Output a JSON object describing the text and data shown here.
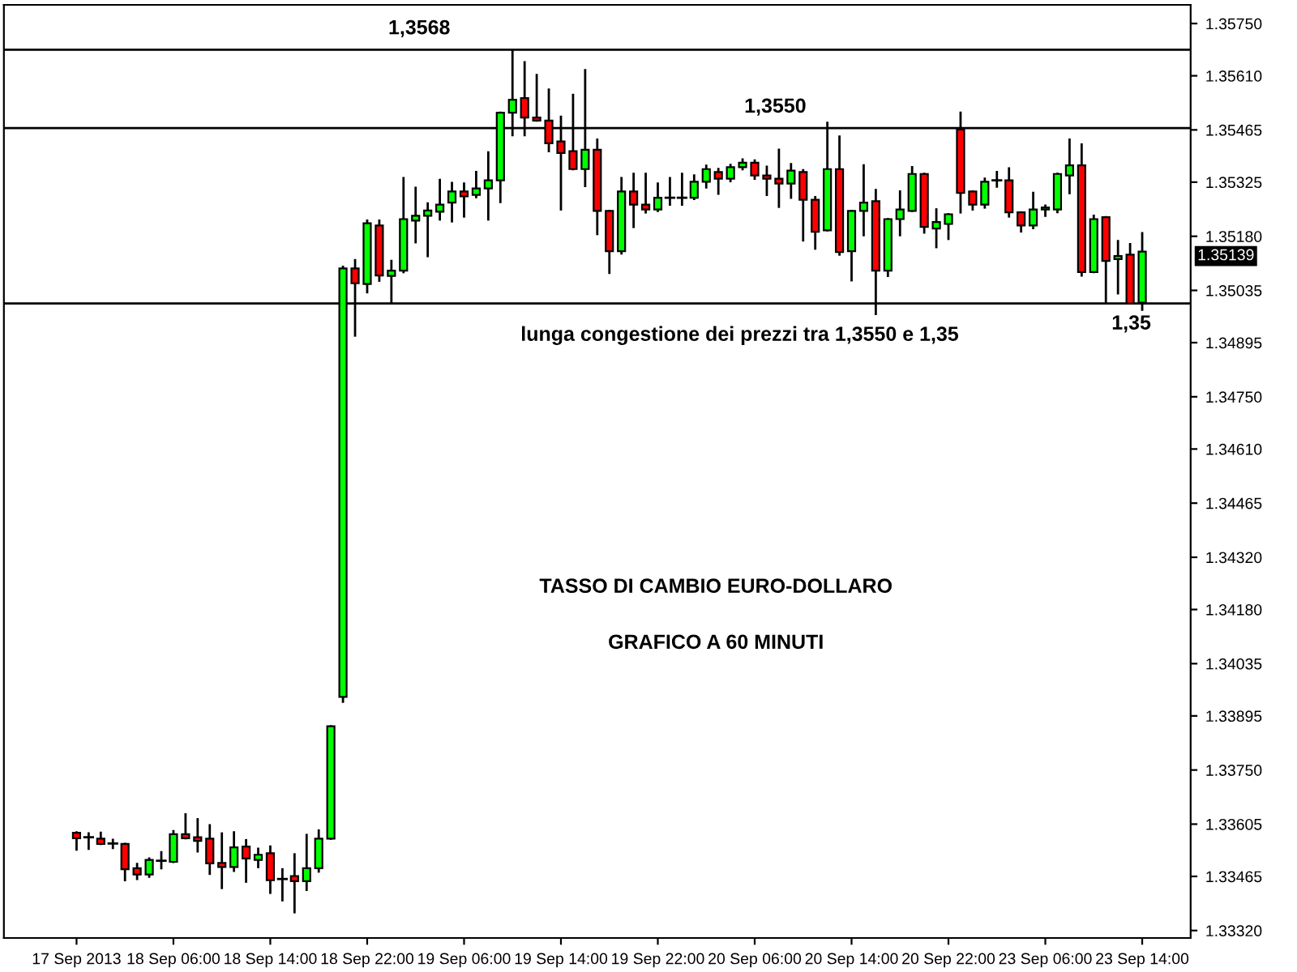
{
  "chart_data": {
    "type": "candlestick",
    "title": "TASSO DI CAMBIO EURO-DOLLARO",
    "subtitle": "GRAFICO A 60 MINUTI",
    "annotations": [
      "lunga congestione dei prezzi tra 1,3550 e 1,35",
      "1.35139"
    ],
    "categories": [
      "17 Sep 2013",
      null,
      null,
      null,
      null,
      null,
      null,
      null,
      "18 Sep 06:00",
      null,
      null,
      null,
      null,
      null,
      null,
      null,
      "18 Sep 14:00",
      null,
      null,
      null,
      null,
      null,
      null,
      null,
      "18 Sep 22:00",
      null,
      null,
      null,
      null,
      null,
      null,
      null,
      "19 Sep 06:00",
      null,
      null,
      null,
      null,
      null,
      null,
      null,
      "19 Sep 14:00",
      null,
      null,
      null,
      null,
      null,
      null,
      null,
      "19 Sep 22:00",
      null,
      null,
      null,
      null,
      null,
      null,
      null,
      "20 Sep 06:00",
      null,
      null,
      null,
      null,
      null,
      null,
      null,
      "20 Sep 14:00",
      null,
      null,
      null,
      null,
      null,
      null,
      null,
      "20 Sep 22:00",
      null,
      null,
      null,
      null,
      null,
      null,
      null,
      "23 Sep 06:00",
      null,
      null,
      null,
      null,
      null,
      null,
      null,
      "23 Sep 14:00"
    ],
    "ohlc": [
      [
        1.33582,
        1.33583,
        1.33537,
        1.33567
      ],
      [
        1.3357,
        1.3358,
        1.33539,
        1.3357
      ],
      [
        1.33566,
        1.33582,
        1.33552,
        1.33552
      ],
      [
        1.33553,
        1.33563,
        1.33541,
        1.33553
      ],
      [
        1.33552,
        1.33552,
        1.33455,
        1.33484
      ],
      [
        1.33487,
        1.33498,
        1.33458,
        1.3347
      ],
      [
        1.3347,
        1.33513,
        1.33464,
        1.33509
      ],
      [
        1.33507,
        1.3353,
        1.33487,
        1.33507
      ],
      [
        1.33504,
        1.33586,
        1.33504,
        1.33578
      ],
      [
        1.33578,
        1.33631,
        1.33567,
        1.33567
      ],
      [
        1.3357,
        1.33618,
        1.33532,
        1.3356
      ],
      [
        1.33566,
        1.33602,
        1.33472,
        1.335
      ],
      [
        1.33501,
        1.3358,
        1.33434,
        1.3349
      ],
      [
        1.3349,
        1.33583,
        1.3348,
        1.33543
      ],
      [
        1.33545,
        1.33562,
        1.33451,
        1.33513
      ],
      [
        1.33509,
        1.33539,
        1.3349,
        1.33523
      ],
      [
        1.33527,
        1.33545,
        1.33421,
        1.33455
      ],
      [
        1.33458,
        1.33484,
        1.33401,
        1.33458
      ],
      [
        1.33466,
        1.33524,
        1.33369,
        1.33452
      ],
      [
        1.33452,
        1.33576,
        1.33429,
        1.33487
      ],
      [
        1.33487,
        1.33588,
        1.33478,
        1.33566
      ],
      [
        1.33566,
        1.33867,
        1.33566,
        1.33867
      ],
      [
        1.33946,
        1.35098,
        1.33933,
        1.35094
      ],
      [
        1.35094,
        1.35116,
        1.34914,
        1.35054
      ],
      [
        1.35052,
        1.35222,
        1.3503,
        1.35215
      ],
      [
        1.35209,
        1.35222,
        1.35061,
        1.35075
      ],
      [
        1.35074,
        1.35114,
        1.35,
        1.35088
      ],
      [
        1.35088,
        1.35336,
        1.35084,
        1.35226
      ],
      [
        1.35222,
        1.3531,
        1.35164,
        1.35235
      ],
      [
        1.35235,
        1.35268,
        1.35127,
        1.35249
      ],
      [
        1.35246,
        1.35331,
        1.35225,
        1.35265
      ],
      [
        1.3527,
        1.35323,
        1.3522,
        1.353
      ],
      [
        1.353,
        1.35321,
        1.35233,
        1.35287
      ],
      [
        1.35291,
        1.35352,
        1.35285,
        1.35308
      ],
      [
        1.35308,
        1.35405,
        1.35225,
        1.3533
      ],
      [
        1.3533,
        1.35511,
        1.35272,
        1.35511
      ],
      [
        1.35511,
        1.3568,
        1.35451,
        1.35546
      ],
      [
        1.3555,
        1.35646,
        1.35451,
        1.35498
      ],
      [
        1.35498,
        1.35612,
        1.3549,
        1.3549
      ],
      [
        1.3549,
        1.35573,
        1.35408,
        1.35429
      ],
      [
        1.35434,
        1.355,
        1.35252,
        1.35403
      ],
      [
        1.35408,
        1.35559,
        1.3536,
        1.3536
      ],
      [
        1.3536,
        1.35625,
        1.35315,
        1.35412
      ],
      [
        1.35412,
        1.35439,
        1.35186,
        1.35248
      ],
      [
        1.35248,
        1.35248,
        1.35082,
        1.3514
      ],
      [
        1.3514,
        1.35336,
        1.35134,
        1.353
      ],
      [
        1.353,
        1.35347,
        1.35205,
        1.35265
      ],
      [
        1.35265,
        1.35347,
        1.35244,
        1.35252
      ],
      [
        1.35252,
        1.35321,
        1.35248,
        1.35283
      ],
      [
        1.35283,
        1.35336,
        1.35265,
        1.35283
      ],
      [
        1.35283,
        1.35347,
        1.35265,
        1.35283
      ],
      [
        1.35283,
        1.35343,
        1.3528,
        1.35326
      ],
      [
        1.35326,
        1.35369,
        1.35311,
        1.3536
      ],
      [
        1.35352,
        1.3536,
        1.35294,
        1.35334
      ],
      [
        1.35334,
        1.35371,
        1.35328,
        1.35365
      ],
      [
        1.35365,
        1.35386,
        1.3536,
        1.35377
      ],
      [
        1.35377,
        1.35383,
        1.35334,
        1.35343
      ],
      [
        1.35343,
        1.35366,
        1.35291,
        1.35334
      ],
      [
        1.35334,
        1.35412,
        1.35259,
        1.35321
      ],
      [
        1.35321,
        1.35373,
        1.35283,
        1.35356
      ],
      [
        1.35352,
        1.35357,
        1.35169,
        1.35278
      ],
      [
        1.35278,
        1.35285,
        1.35147,
        1.35192
      ],
      [
        1.35196,
        1.35484,
        1.35196,
        1.3536
      ],
      [
        1.3536,
        1.35447,
        1.35131,
        1.35138
      ],
      [
        1.3514,
        1.35248,
        1.35062,
        1.35248
      ],
      [
        1.35248,
        1.3537,
        1.35183,
        1.3527
      ],
      [
        1.35274,
        1.35304,
        1.34972,
        1.35088
      ],
      [
        1.35088,
        1.35226,
        1.35074,
        1.35226
      ],
      [
        1.35226,
        1.353,
        1.35183,
        1.35252
      ],
      [
        1.35248,
        1.35365,
        1.35248,
        1.35347
      ],
      [
        1.35347,
        1.35347,
        1.3519,
        1.35205
      ],
      [
        1.35201,
        1.35252,
        1.35151,
        1.35218
      ],
      [
        1.35213,
        1.35239,
        1.35173,
        1.35239
      ],
      [
        1.35466,
        1.35511,
        1.35244,
        1.35296
      ],
      [
        1.353,
        1.353,
        1.35252,
        1.35265
      ],
      [
        1.35265,
        1.35334,
        1.35257,
        1.35326
      ],
      [
        1.3533,
        1.35352,
        1.35313,
        1.3533
      ],
      [
        1.3533,
        1.35362,
        1.35233,
        1.35244
      ],
      [
        1.35244,
        1.35244,
        1.35193,
        1.35209
      ],
      [
        1.35209,
        1.35296,
        1.35202,
        1.35252
      ],
      [
        1.35252,
        1.35262,
        1.35235,
        1.35257
      ],
      [
        1.35252,
        1.35347,
        1.35245,
        1.35347
      ],
      [
        1.35343,
        1.35439,
        1.35296,
        1.3537
      ],
      [
        1.3537,
        1.35426,
        1.35075,
        1.35084
      ],
      [
        1.35084,
        1.35235,
        1.35084,
        1.35226
      ],
      [
        1.35231,
        1.35231,
        1.35,
        1.35114
      ],
      [
        1.35119,
        1.35167,
        1.35027,
        1.35127
      ],
      [
        1.35131,
        1.35159,
        1.35,
        1.35
      ],
      [
        1.35002,
        1.35188,
        1.34983,
        1.35139
      ]
    ],
    "colors": [
      "#ff0000",
      "#000000",
      "#ff0000",
      "#000000",
      "#ff0000",
      "#ff0000",
      "#00ff00",
      "#000000",
      "#00ff00",
      "#ff0000",
      "#ff0000",
      "#ff0000",
      "#ff0000",
      "#00ff00",
      "#ff0000",
      "#00ff00",
      "#ff0000",
      "#000000",
      "#ff0000",
      "#00ff00",
      "#00ff00",
      "#00ff00",
      "#00ff00",
      "#ff0000",
      "#00ff00",
      "#ff0000",
      "#00ff00",
      "#00ff00",
      "#00ff00",
      "#00ff00",
      "#00ff00",
      "#00ff00",
      "#ff0000",
      "#00ff00",
      "#00ff00",
      "#00ff00",
      "#00ff00",
      "#ff0000",
      "#ff0000",
      "#ff0000",
      "#ff0000",
      "#ff0000",
      "#00ff00",
      "#ff0000",
      "#ff0000",
      "#00ff00",
      "#ff0000",
      "#ff0000",
      "#00ff00",
      "#000000",
      "#000000",
      "#00ff00",
      "#00ff00",
      "#ff0000",
      "#00ff00",
      "#00ff00",
      "#ff0000",
      "#ff0000",
      "#ff0000",
      "#00ff00",
      "#ff0000",
      "#ff0000",
      "#00ff00",
      "#ff0000",
      "#00ff00",
      "#00ff00",
      "#ff0000",
      "#00ff00",
      "#00ff00",
      "#00ff00",
      "#ff0000",
      "#00ff00",
      "#00ff00",
      "#ff0000",
      "#ff0000",
      "#00ff00",
      "#000000",
      "#ff0000",
      "#ff0000",
      "#00ff00",
      "#00ff00",
      "#00ff00",
      "#00ff00",
      "#ff0000",
      "#00ff00",
      "#ff0000",
      "#00ff00",
      "#ff0000",
      "#00ff00"
    ],
    "ylim": [
      1.333,
      1.358
    ],
    "yticks": [
      {
        "value": 1.3575,
        "label": "1.35750"
      },
      {
        "value": 1.3561,
        "label": "1.35610"
      },
      {
        "value": 1.35465,
        "label": "1.35465"
      },
      {
        "value": 1.35325,
        "label": "1.35325"
      },
      {
        "value": 1.3518,
        "label": "1.35180"
      },
      {
        "value": 1.35035,
        "label": "1.35035"
      },
      {
        "value": 1.34895,
        "label": "1.34895"
      },
      {
        "value": 1.3475,
        "label": "1.34750"
      },
      {
        "value": 1.3461,
        "label": "1.34610"
      },
      {
        "value": 1.34465,
        "label": "1.34465"
      },
      {
        "value": 1.3432,
        "label": "1.34320"
      },
      {
        "value": 1.3418,
        "label": "1.34180"
      },
      {
        "value": 1.34035,
        "label": "1.34035"
      },
      {
        "value": 1.33895,
        "label": "1.33895"
      },
      {
        "value": 1.3375,
        "label": "1.33750"
      },
      {
        "value": 1.33605,
        "label": "1.33605"
      },
      {
        "value": 1.33465,
        "label": "1.33465"
      },
      {
        "value": 1.3332,
        "label": "1.33320"
      }
    ],
    "ref_lines": [
      {
        "axis": "y",
        "value": 1.3568,
        "label": "1,3568",
        "color": "#000000"
      },
      {
        "axis": "y",
        "value": 1.3547,
        "label": "1,3550",
        "color": "#000000"
      },
      {
        "axis": "y",
        "value": 1.35,
        "label": "1,35",
        "color": "#000000"
      }
    ],
    "grid": false,
    "legend": false
  }
}
